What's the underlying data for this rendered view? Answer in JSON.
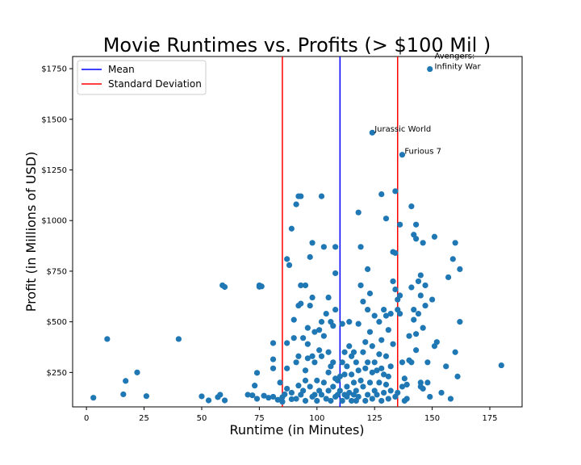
{
  "chart_data": {
    "type": "scatter",
    "title": "Movie Runtimes vs. Profits (> $100 Mil )",
    "xlabel": "Runtime (in Minutes)",
    "ylabel": "Profit (in Millions of USD)",
    "xlim": [
      -6,
      189
    ],
    "ylim": [
      80,
      1810
    ],
    "x_ticks": [
      0,
      25,
      50,
      75,
      100,
      125,
      150,
      175
    ],
    "y_ticks": [
      250,
      500,
      750,
      1000,
      1250,
      1500,
      1750
    ],
    "y_tick_prefix": "$",
    "grid": false,
    "legend_position": "top-left",
    "point_color": "#1f77b4",
    "reference_lines": [
      {
        "label": "Mean",
        "x": 110,
        "color": "#0000ff"
      },
      {
        "label": "Standard Deviation",
        "x": 85,
        "color": "#ff0000"
      },
      {
        "label": "",
        "x": 135,
        "color": "#ff0000"
      }
    ],
    "legend": [
      {
        "label": "Mean",
        "color": "#0000ff"
      },
      {
        "label": "Standard Deviation",
        "color": "#ff0000"
      }
    ],
    "annotations": [
      {
        "text": "Avengers:",
        "x": 151,
        "y": 1800
      },
      {
        "text": "Infinity War",
        "x": 151,
        "y": 1748
      },
      {
        "text": "Jurassic World",
        "x": 125,
        "y": 1440
      },
      {
        "text": "Furious 7",
        "x": 138,
        "y": 1330
      }
    ],
    "points": [
      [
        149,
        1748
      ],
      [
        124,
        1434
      ],
      [
        137,
        1325
      ],
      [
        3,
        125
      ],
      [
        9,
        415
      ],
      [
        16,
        142
      ],
      [
        17,
        208
      ],
      [
        22,
        250
      ],
      [
        26,
        133
      ],
      [
        40,
        415
      ],
      [
        50,
        132
      ],
      [
        53,
        112
      ],
      [
        57,
        128
      ],
      [
        58,
        140
      ],
      [
        60,
        112
      ],
      [
        59,
        680
      ],
      [
        60,
        672
      ],
      [
        70,
        140
      ],
      [
        72,
        137
      ],
      [
        73,
        185
      ],
      [
        74,
        120
      ],
      [
        74,
        248
      ],
      [
        75,
        680
      ],
      [
        75,
        673
      ],
      [
        76,
        675
      ],
      [
        77,
        135
      ],
      [
        79,
        125
      ],
      [
        81,
        315
      ],
      [
        81,
        270
      ],
      [
        81,
        395
      ],
      [
        81,
        130
      ],
      [
        83,
        115
      ],
      [
        84,
        200
      ],
      [
        85,
        105
      ],
      [
        85,
        128
      ],
      [
        86,
        142
      ],
      [
        87,
        170
      ],
      [
        87,
        270
      ],
      [
        87,
        395
      ],
      [
        87,
        810
      ],
      [
        88,
        780
      ],
      [
        89,
        960
      ],
      [
        89,
        150
      ],
      [
        89,
        118
      ],
      [
        90,
        420
      ],
      [
        90,
        510
      ],
      [
        91,
        1080
      ],
      [
        91,
        120
      ],
      [
        91,
        300
      ],
      [
        92,
        580
      ],
      [
        92,
        330
      ],
      [
        92,
        1120
      ],
      [
        92,
        185
      ],
      [
        93,
        590
      ],
      [
        93,
        1120
      ],
      [
        93,
        680
      ],
      [
        93,
        140
      ],
      [
        94,
        160
      ],
      [
        94,
        420
      ],
      [
        95,
        680
      ],
      [
        95,
        260
      ],
      [
        95,
        210
      ],
      [
        95,
        110
      ],
      [
        96,
        470
      ],
      [
        96,
        390
      ],
      [
        96,
        320
      ],
      [
        97,
        580
      ],
      [
        97,
        820
      ],
      [
        97,
        180
      ],
      [
        98,
        890
      ],
      [
        98,
        620
      ],
      [
        98,
        330
      ],
      [
        98,
        130
      ],
      [
        99,
        450
      ],
      [
        99,
        300
      ],
      [
        99,
        140
      ],
      [
        100,
        210
      ],
      [
        100,
        110
      ],
      [
        101,
        360
      ],
      [
        101,
        460
      ],
      [
        101,
        160
      ],
      [
        102,
        1120
      ],
      [
        102,
        500
      ],
      [
        102,
        330
      ],
      [
        102,
        140
      ],
      [
        103,
        870
      ],
      [
        103,
        430
      ],
      [
        103,
        200
      ],
      [
        104,
        540
      ],
      [
        104,
        120
      ],
      [
        105,
        620
      ],
      [
        105,
        350
      ],
      [
        105,
        250
      ],
      [
        105,
        160
      ],
      [
        106,
        500
      ],
      [
        106,
        280
      ],
      [
        106,
        110
      ],
      [
        107,
        480
      ],
      [
        107,
        300
      ],
      [
        107,
        180
      ],
      [
        108,
        870
      ],
      [
        108,
        740
      ],
      [
        108,
        560
      ],
      [
        108,
        220
      ],
      [
        108,
        130
      ],
      [
        109,
        210
      ],
      [
        109,
        140
      ],
      [
        110,
        230
      ],
      [
        110,
        160
      ],
      [
        111,
        490
      ],
      [
        111,
        300
      ],
      [
        111,
        110
      ],
      [
        112,
        350
      ],
      [
        112,
        240
      ],
      [
        112,
        140
      ],
      [
        113,
        280
      ],
      [
        113,
        180
      ],
      [
        113,
        130
      ],
      [
        114,
        500
      ],
      [
        114,
        380
      ],
      [
        114,
        150
      ],
      [
        115,
        330
      ],
      [
        115,
        240
      ],
      [
        115,
        110
      ],
      [
        116,
        350
      ],
      [
        116,
        200
      ],
      [
        116,
        140
      ],
      [
        117,
        300
      ],
      [
        117,
        160
      ],
      [
        117,
        110
      ],
      [
        118,
        1040
      ],
      [
        118,
        490
      ],
      [
        118,
        260
      ],
      [
        118,
        130
      ],
      [
        119,
        870
      ],
      [
        119,
        680
      ],
      [
        119,
        210
      ],
      [
        120,
        600
      ],
      [
        120,
        350
      ],
      [
        120,
        180
      ],
      [
        121,
        400
      ],
      [
        121,
        270
      ],
      [
        121,
        110
      ],
      [
        122,
        760
      ],
      [
        122,
        560
      ],
      [
        122,
        300
      ],
      [
        122,
        140
      ],
      [
        123,
        640
      ],
      [
        123,
        450
      ],
      [
        123,
        200
      ],
      [
        124,
        380
      ],
      [
        124,
        250
      ],
      [
        124,
        120
      ],
      [
        125,
        530
      ],
      [
        125,
        300
      ],
      [
        125,
        160
      ],
      [
        126,
        260
      ],
      [
        126,
        140
      ],
      [
        127,
        500
      ],
      [
        127,
        340
      ],
      [
        127,
        200
      ],
      [
        128,
        1130
      ],
      [
        128,
        410
      ],
      [
        128,
        270
      ],
      [
        128,
        110
      ],
      [
        129,
        560
      ],
      [
        129,
        240
      ],
      [
        129,
        150
      ],
      [
        130,
        1010
      ],
      [
        130,
        530
      ],
      [
        130,
        330
      ],
      [
        130,
        190
      ],
      [
        131,
        460
      ],
      [
        131,
        230
      ],
      [
        131,
        120
      ],
      [
        132,
        540
      ],
      [
        132,
        280
      ],
      [
        132,
        160
      ],
      [
        133,
        845
      ],
      [
        133,
        700
      ],
      [
        133,
        390
      ],
      [
        134,
        1145
      ],
      [
        134,
        840
      ],
      [
        134,
        660
      ],
      [
        134,
        130
      ],
      [
        135,
        610
      ],
      [
        135,
        560
      ],
      [
        135,
        150
      ],
      [
        136,
        980
      ],
      [
        136,
        630
      ],
      [
        136,
        540
      ],
      [
        137,
        300
      ],
      [
        137,
        180
      ],
      [
        138,
        220
      ],
      [
        138,
        110
      ],
      [
        139,
        190
      ],
      [
        139,
        120
      ],
      [
        140,
        430
      ],
      [
        140,
        310
      ],
      [
        141,
        1070
      ],
      [
        141,
        670
      ],
      [
        141,
        300
      ],
      [
        142,
        930
      ],
      [
        142,
        560
      ],
      [
        142,
        510
      ],
      [
        143,
        980
      ],
      [
        143,
        910
      ],
      [
        143,
        440
      ],
      [
        143,
        360
      ],
      [
        144,
        700
      ],
      [
        144,
        540
      ],
      [
        145,
        730
      ],
      [
        145,
        630
      ],
      [
        145,
        200
      ],
      [
        145,
        180
      ],
      [
        146,
        890
      ],
      [
        146,
        470
      ],
      [
        146,
        170
      ],
      [
        147,
        680
      ],
      [
        147,
        580
      ],
      [
        148,
        300
      ],
      [
        148,
        200
      ],
      [
        149,
        130
      ],
      [
        150,
        610
      ],
      [
        151,
        920
      ],
      [
        151,
        380
      ],
      [
        152,
        400
      ],
      [
        154,
        150
      ],
      [
        156,
        280
      ],
      [
        157,
        720
      ],
      [
        158,
        120
      ],
      [
        159,
        810
      ],
      [
        160,
        350
      ],
      [
        160,
        890
      ],
      [
        161,
        230
      ],
      [
        162,
        760
      ],
      [
        162,
        500
      ],
      [
        180,
        285
      ]
    ]
  }
}
